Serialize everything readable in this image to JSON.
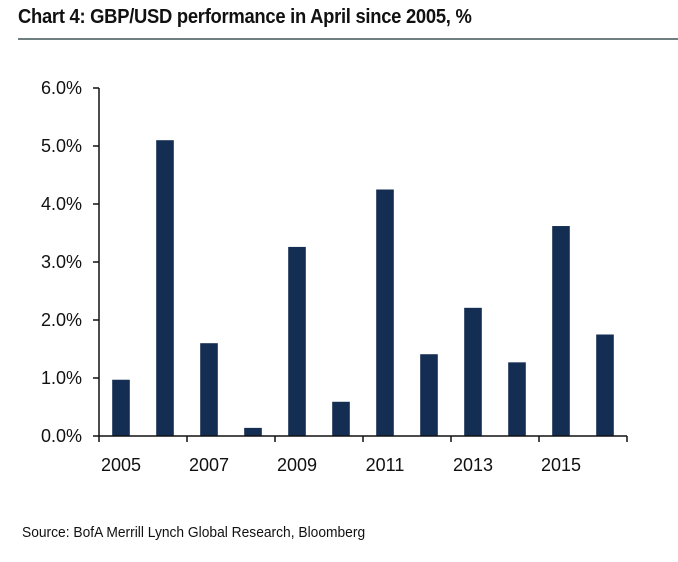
{
  "title": "Chart 4: GBP/USD performance in April since 2005, %",
  "source": "Source: BofA Merrill Lynch Global Research, Bloomberg",
  "colors": {
    "bar": "#142d52",
    "axis": "#111111",
    "rule": "#6f7f80"
  },
  "chart_data": {
    "type": "bar",
    "title": "Chart 4: GBP/USD performance in April since 2005, %",
    "xlabel": "",
    "ylabel": "",
    "categories": [
      "2005",
      "2006",
      "2007",
      "2008",
      "2009",
      "2010",
      "2011",
      "2012",
      "2013",
      "2014",
      "2015",
      "2016"
    ],
    "values": [
      0.97,
      5.1,
      1.6,
      0.14,
      3.26,
      0.59,
      4.25,
      1.41,
      2.21,
      1.27,
      3.62,
      1.75
    ],
    "x_tick_labels": [
      "2005",
      "2007",
      "2009",
      "2011",
      "2013",
      "2015"
    ],
    "y_tick_labels": [
      "0.0%",
      "1.0%",
      "2.0%",
      "3.0%",
      "4.0%",
      "5.0%",
      "6.0%"
    ],
    "y_ticks": [
      0,
      1,
      2,
      3,
      4,
      5,
      6
    ],
    "ylim": [
      0,
      6
    ],
    "grid": false,
    "legend": "none",
    "units": "%"
  }
}
